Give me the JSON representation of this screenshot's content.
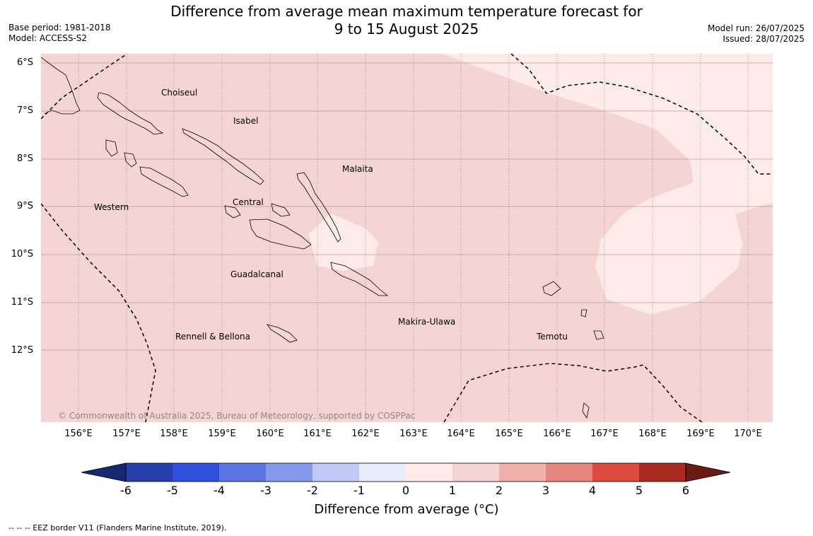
{
  "title": {
    "line1": "Difference from average mean maximum temperature forecast for",
    "line2": "9 to 15 August 2025"
  },
  "meta": {
    "base_period": "Base period: 1981-2018",
    "model": "Model: ACCESS-S2",
    "model_run": "Model run: 26/07/2025",
    "issued": "Issued: 28/07/2025"
  },
  "map": {
    "lat_labels": [
      "6°S",
      "7°S",
      "8°S",
      "9°S",
      "10°S",
      "11°S",
      "12°S"
    ],
    "lon_labels": [
      "156°E",
      "157°E",
      "158°E",
      "159°E",
      "160°E",
      "161°E",
      "162°E",
      "163°E",
      "164°E",
      "165°E",
      "166°E",
      "167°E",
      "168°E",
      "169°E",
      "170°E"
    ],
    "regions": [
      "Choiseul",
      "Isabel",
      "Malaita",
      "Western",
      "Central",
      "Guadalcanal",
      "Makira-Ulawa",
      "Rennell & Bellona",
      "Temotu"
    ],
    "copyright": "© Commonwealth of Australia 2025, Bureau of Meteorology, supported by COSPPac",
    "fill_colors": {
      "1_to_2": "#f5d5d3",
      "0_to_1": "#fcebe9"
    }
  },
  "colorbar": {
    "ticks": [
      "-6",
      "-5",
      "-4",
      "-3",
      "-2",
      "-1",
      "0",
      "1",
      "2",
      "3",
      "4",
      "5",
      "6"
    ],
    "colors": [
      "#172870",
      "#263fab",
      "#304fdc",
      "#5b76e3",
      "#8598ec",
      "#c1c9f4",
      "#e9ecfb",
      "#fcebe9",
      "#f5d5d3",
      "#efafab",
      "#e6877f",
      "#dc4b40",
      "#a82a20",
      "#6b1a14"
    ],
    "label": "Difference from average (°C)"
  },
  "footnote": "--  --  -- EEZ border V11 (Flanders Marine Institute, 2019)."
}
